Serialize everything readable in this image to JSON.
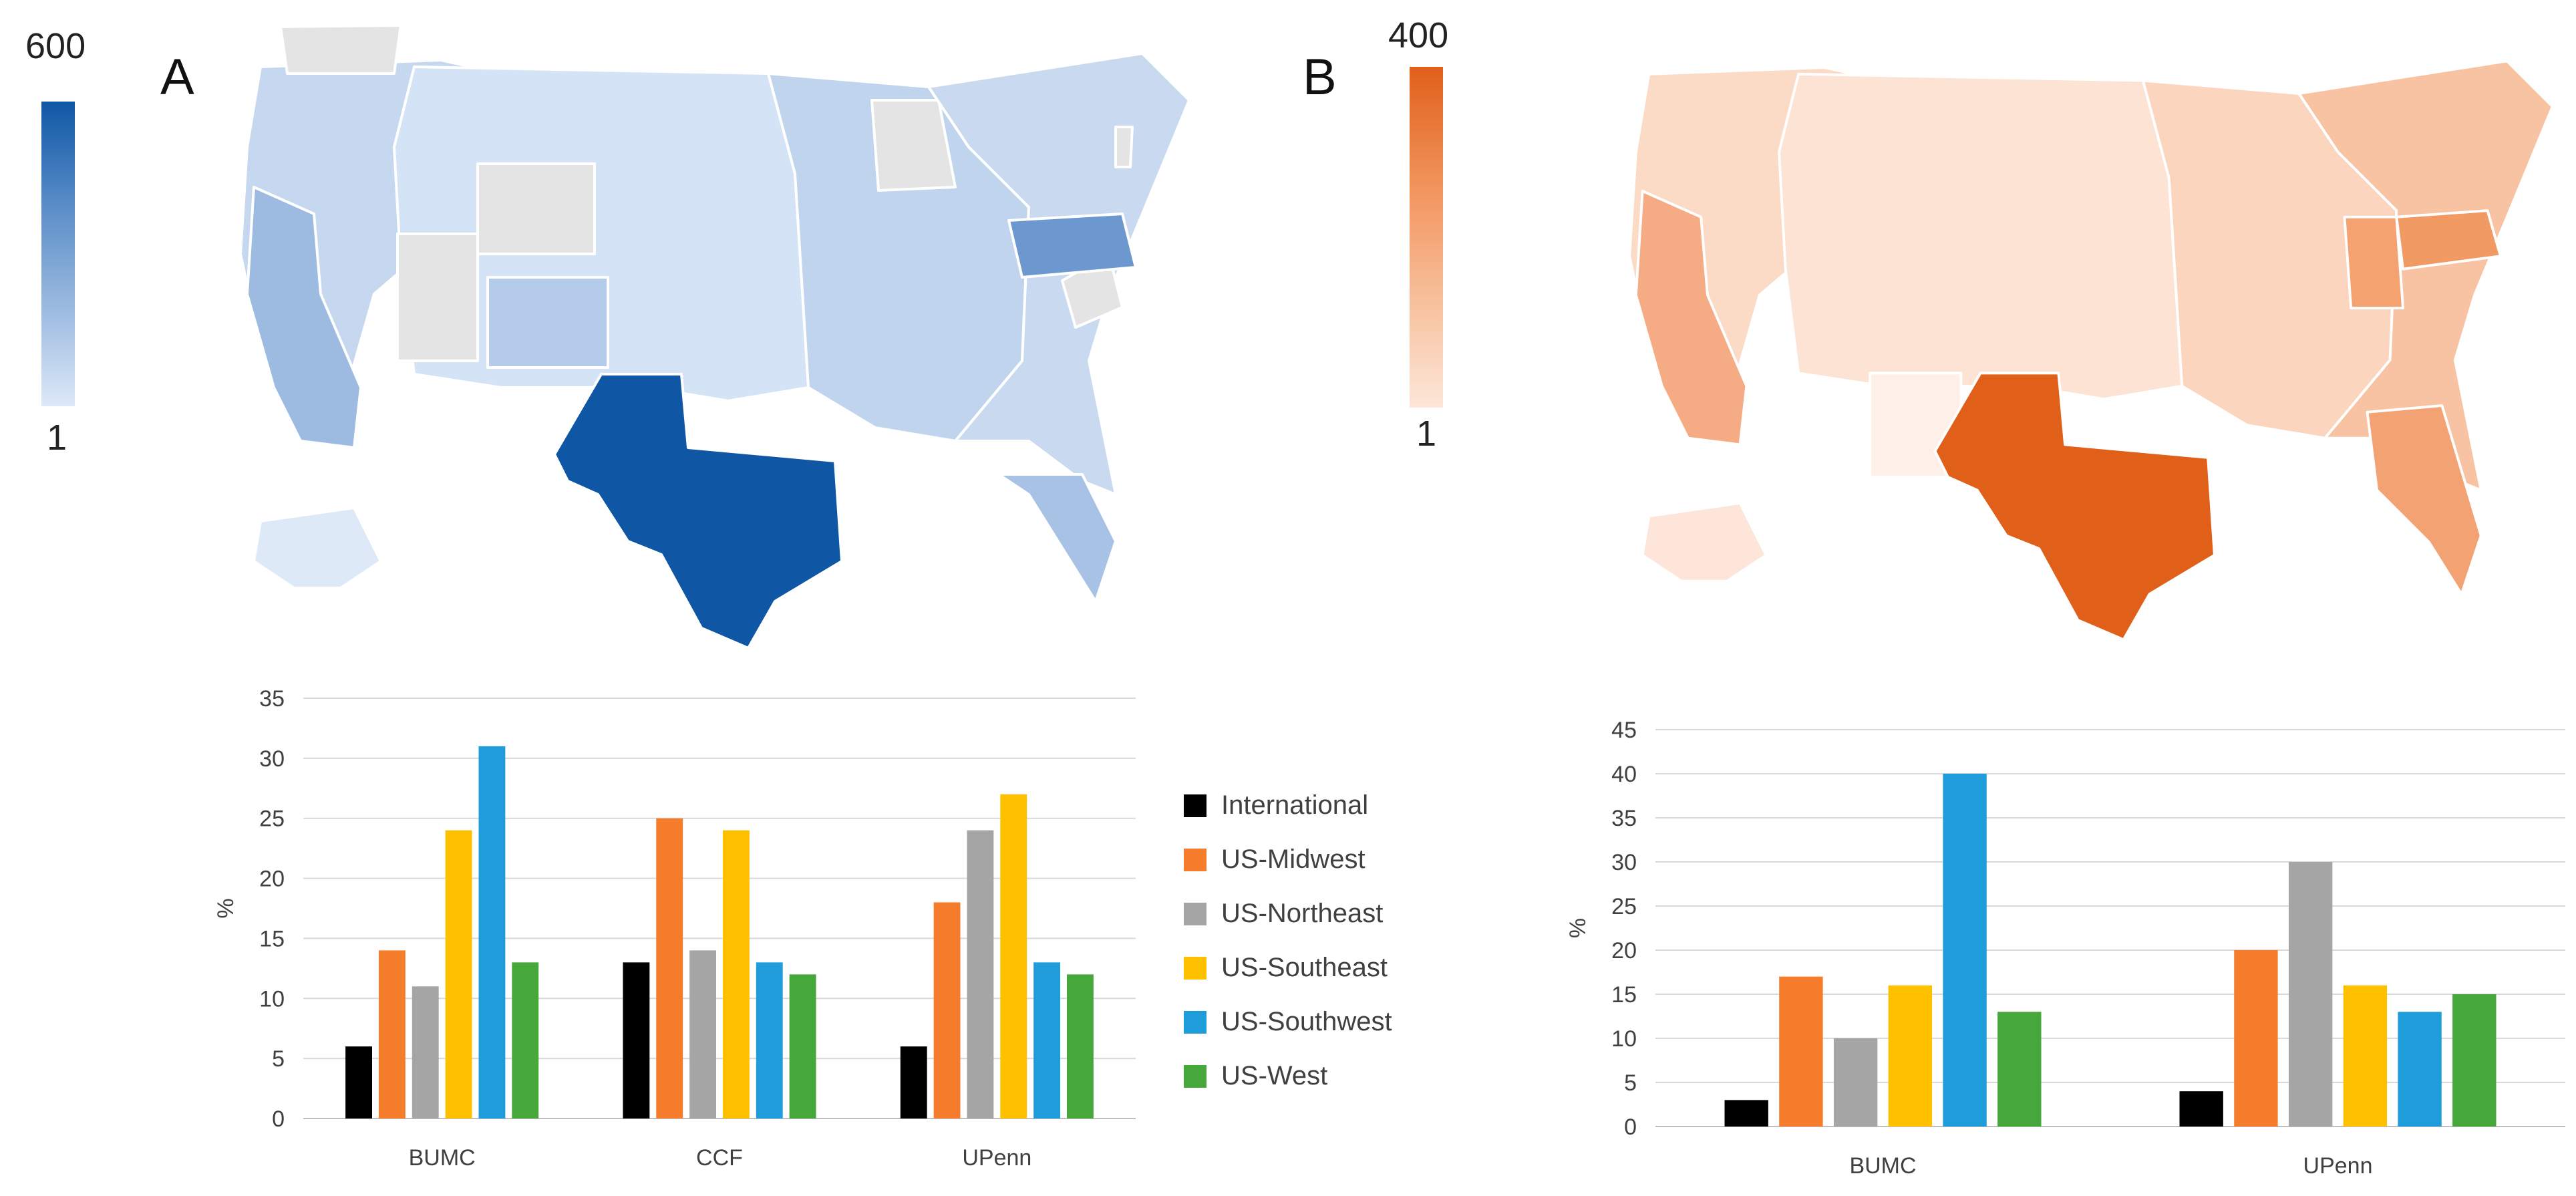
{
  "panels": {
    "a": {
      "letter": "A",
      "scale_max": "600",
      "scale_min": "1"
    },
    "b": {
      "letter": "B",
      "scale_max": "400",
      "scale_min": "1"
    }
  },
  "maps": [
    {
      "panel": "A",
      "palette": {
        "max": "#0f57a5",
        "mid": "#7ea6d6",
        "low": "#dde9f7",
        "no_data": "#e4e4e4"
      },
      "highlighted_regions": [
        {
          "state": "Texas",
          "level": "max"
        },
        {
          "state": "Pennsylvania",
          "level": "high"
        }
      ]
    },
    {
      "panel": "B",
      "palette": {
        "max": "#e0601a",
        "mid": "#f4a679",
        "low": "#fde6d9"
      },
      "highlighted_regions": [
        {
          "state": "Texas",
          "level": "max"
        },
        {
          "state": "Pennsylvania",
          "level": "high"
        }
      ]
    }
  ],
  "legend": {
    "position": "between-charts",
    "items": [
      {
        "label": "International",
        "color": "#000000"
      },
      {
        "label": "US-Midwest",
        "color": "#f47c2a"
      },
      {
        "label": "US-Northeast",
        "color": "#a5a5a5"
      },
      {
        "label": "US-Southeast",
        "color": "#ffc000"
      },
      {
        "label": "US-Southwest",
        "color": "#1f9ddb"
      },
      {
        "label": "US-West",
        "color": "#46a83b"
      }
    ]
  },
  "chart_data": [
    {
      "type": "bar",
      "panel": "A",
      "categories": [
        "BUMC",
        "CCF",
        "UPenn"
      ],
      "ylabel": "%",
      "ylim": [
        0,
        35
      ],
      "yticks": [
        0,
        5,
        10,
        15,
        20,
        25,
        30,
        35
      ],
      "grid": true,
      "series": [
        {
          "name": "International",
          "values": [
            6,
            13,
            6
          ]
        },
        {
          "name": "US-Midwest",
          "values": [
            14,
            25,
            18
          ]
        },
        {
          "name": "US-Northeast",
          "values": [
            11,
            14,
            24
          ]
        },
        {
          "name": "US-Southeast",
          "values": [
            24,
            24,
            27
          ]
        },
        {
          "name": "US-Southwest",
          "values": [
            31,
            13,
            13
          ]
        },
        {
          "name": "US-West",
          "values": [
            13,
            12,
            12
          ]
        }
      ]
    },
    {
      "type": "bar",
      "panel": "B",
      "categories": [
        "BUMC",
        "UPenn"
      ],
      "ylabel": "%",
      "ylim": [
        0,
        45
      ],
      "yticks": [
        0,
        5,
        10,
        15,
        20,
        25,
        30,
        35,
        40,
        45
      ],
      "grid": true,
      "series": [
        {
          "name": "International",
          "values": [
            3,
            4
          ]
        },
        {
          "name": "US-Midwest",
          "values": [
            17,
            20
          ]
        },
        {
          "name": "US-Northeast",
          "values": [
            10,
            30
          ]
        },
        {
          "name": "US-Southeast",
          "values": [
            16,
            16
          ]
        },
        {
          "name": "US-Southwest",
          "values": [
            40,
            13
          ]
        },
        {
          "name": "US-West",
          "values": [
            13,
            15
          ]
        }
      ]
    }
  ]
}
